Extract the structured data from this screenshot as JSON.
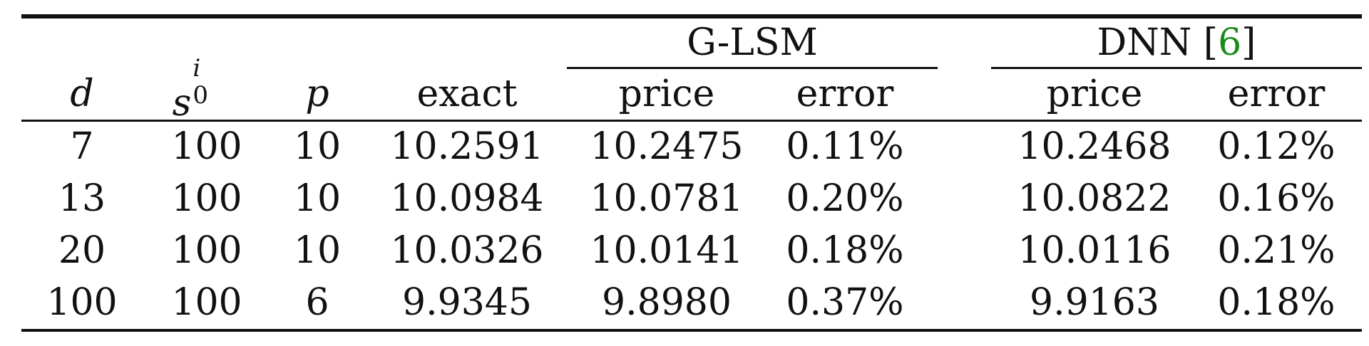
{
  "table": {
    "group_headers": {
      "glsm": "G-LSM",
      "dnn": "DNN",
      "dnn_cite_open": "[",
      "dnn_cite_num": "6",
      "dnn_cite_close": "]"
    },
    "column_headers": {
      "d": "d",
      "s0_base": "s",
      "s0_sup": "i",
      "s0_sub": "0",
      "p": "p",
      "exact": "exact",
      "glsm_price": "price",
      "glsm_error": "error",
      "dnn_price": "price",
      "dnn_error": "error"
    },
    "rows": [
      {
        "d": "7",
        "s0": "100",
        "p": "10",
        "exact": "10.2591",
        "glsm_price": "10.2475",
        "glsm_error": "0.11%",
        "dnn_price": "10.2468",
        "dnn_error": "0.12%"
      },
      {
        "d": "13",
        "s0": "100",
        "p": "10",
        "exact": "10.0984",
        "glsm_price": "10.0781",
        "glsm_error": "0.20%",
        "dnn_price": "10.0822",
        "dnn_error": "0.16%"
      },
      {
        "d": "20",
        "s0": "100",
        "p": "10",
        "exact": "10.0326",
        "glsm_price": "10.0141",
        "glsm_error": "0.18%",
        "dnn_price": "10.0116",
        "dnn_error": "0.21%"
      },
      {
        "d": "100",
        "s0": "100",
        "p": "6",
        "exact": "9.9345",
        "glsm_price": "9.8980",
        "glsm_error": "0.37%",
        "dnn_price": "9.9163",
        "dnn_error": "0.18%"
      }
    ]
  }
}
